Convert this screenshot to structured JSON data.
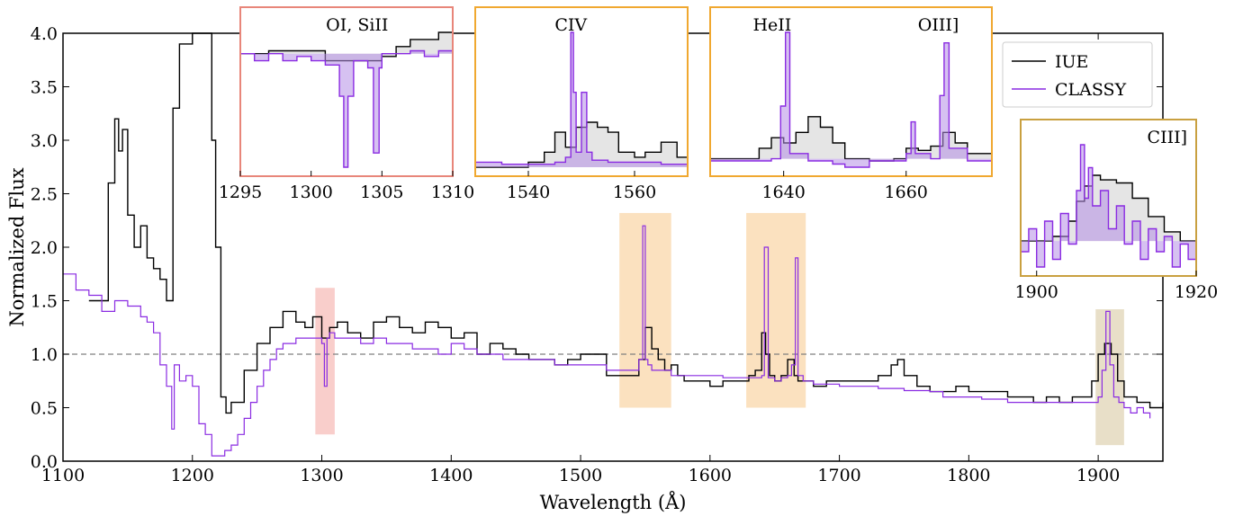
{
  "chart_data": {
    "type": "line",
    "xlabel": "Wavelength (Å)",
    "ylabel": "Normalized Flux",
    "xlim": [
      1100,
      1950
    ],
    "ylim": [
      0,
      4.0
    ],
    "x_ticks": [
      1100,
      1200,
      1300,
      1400,
      1500,
      1600,
      1700,
      1800,
      1900
    ],
    "y_ticks": [
      "0.0",
      "0.5",
      "1.0",
      "1.5",
      "2.0",
      "2.5",
      "3.0",
      "3.5",
      "4.0"
    ],
    "reference_line": {
      "y": 1.0,
      "style": "dashed",
      "color": "#7f7f7f"
    },
    "legend": {
      "placement": "top-right",
      "entries": [
        {
          "label": "IUE",
          "color": "#000000"
        },
        {
          "label": "CLASSY",
          "color": "#8a2be2"
        }
      ]
    },
    "colors": {
      "iue": "#000000",
      "classy": "#8a2be2",
      "masked": "#bfbfbf",
      "shade_red": "#f4a6a0",
      "shade_orange": "#f8c98a",
      "shade_tan": "#d6c49a"
    },
    "shaded_regions": [
      {
        "x": [
          1295,
          1310
        ],
        "y": [
          0.25,
          1.62
        ],
        "color": "#f4a6a0"
      },
      {
        "x": [
          1530,
          1570
        ],
        "y": [
          0.5,
          2.32
        ],
        "color": "#f8c98a"
      },
      {
        "x": [
          1628,
          1674
        ],
        "y": [
          0.5,
          2.32
        ],
        "color": "#f8c98a"
      },
      {
        "x": [
          1898,
          1920
        ],
        "y": [
          0.15,
          1.42
        ],
        "color": "#d6c49a"
      }
    ],
    "series": [
      {
        "name": "IUE",
        "x": [
          1120,
          1135,
          1140,
          1143,
          1146,
          1150,
          1155,
          1160,
          1165,
          1170,
          1175,
          1180,
          1185,
          1190,
          1200,
          1210,
          1215,
          1218,
          1222,
          1226,
          1230,
          1240,
          1250,
          1260,
          1270,
          1280,
          1287,
          1293,
          1300,
          1306,
          1312,
          1320,
          1330,
          1340,
          1350,
          1360,
          1370,
          1380,
          1390,
          1400,
          1410,
          1420,
          1430,
          1440,
          1450,
          1460,
          1470,
          1480,
          1490,
          1500,
          1510,
          1520,
          1530,
          1540,
          1545,
          1550,
          1555,
          1560,
          1565,
          1570,
          1575,
          1580,
          1590,
          1600,
          1610,
          1620,
          1630,
          1635,
          1640,
          1643,
          1646,
          1650,
          1655,
          1660,
          1665,
          1668,
          1672,
          1680,
          1690,
          1700,
          1710,
          1720,
          1730,
          1740,
          1745,
          1750,
          1760,
          1770,
          1780,
          1790,
          1800,
          1810,
          1820,
          1830,
          1840,
          1850,
          1860,
          1870,
          1880,
          1890,
          1895,
          1900,
          1905,
          1910,
          1915,
          1920,
          1930,
          1940,
          1950
        ],
        "y": [
          1.5,
          2.6,
          3.2,
          2.9,
          3.1,
          2.3,
          2.0,
          2.2,
          1.9,
          1.8,
          1.7,
          1.5,
          3.3,
          3.9,
          4.0,
          4.0,
          3.0,
          2.0,
          0.6,
          0.45,
          0.55,
          0.85,
          1.1,
          1.25,
          1.4,
          1.3,
          1.25,
          1.35,
          1.15,
          1.25,
          1.3,
          1.2,
          1.15,
          1.3,
          1.35,
          1.25,
          1.2,
          1.3,
          1.25,
          1.15,
          1.2,
          1.0,
          1.1,
          1.05,
          1.0,
          0.95,
          0.95,
          0.9,
          0.95,
          1.0,
          1.0,
          0.8,
          0.8,
          0.8,
          0.95,
          1.25,
          1.05,
          0.95,
          0.85,
          0.9,
          0.8,
          0.75,
          0.75,
          0.7,
          0.75,
          0.75,
          0.8,
          0.85,
          1.2,
          1.0,
          0.8,
          0.75,
          0.8,
          0.95,
          0.8,
          0.75,
          0.75,
          0.7,
          0.75,
          0.75,
          0.75,
          0.75,
          0.8,
          0.9,
          0.95,
          0.8,
          0.7,
          0.65,
          0.65,
          0.7,
          0.65,
          0.65,
          0.65,
          0.6,
          0.6,
          0.55,
          0.6,
          0.55,
          0.6,
          0.6,
          0.75,
          1.0,
          1.1,
          1.0,
          0.75,
          0.6,
          0.55,
          0.5,
          0.55
        ]
      },
      {
        "name": "CLASSY",
        "x": [
          1100,
          1110,
          1120,
          1130,
          1140,
          1150,
          1160,
          1165,
          1170,
          1175,
          1180,
          1184,
          1186,
          1190,
          1195,
          1200,
          1205,
          1210,
          1215,
          1220,
          1225,
          1230,
          1235,
          1240,
          1245,
          1250,
          1255,
          1260,
          1265,
          1270,
          1280,
          1290,
          1300,
          1302,
          1304,
          1306,
          1310,
          1320,
          1330,
          1340,
          1350,
          1360,
          1370,
          1380,
          1390,
          1400,
          1410,
          1420,
          1430,
          1440,
          1450,
          1460,
          1470,
          1480,
          1490,
          1500,
          1510,
          1520,
          1530,
          1540,
          1545,
          1548,
          1550,
          1552,
          1555,
          1560,
          1570,
          1580,
          1590,
          1600,
          1610,
          1620,
          1630,
          1635,
          1640,
          1642,
          1645,
          1650,
          1655,
          1660,
          1663,
          1666,
          1668,
          1672,
          1680,
          1690,
          1700,
          1710,
          1720,
          1730,
          1740,
          1750,
          1760,
          1770,
          1780,
          1790,
          1800,
          1810,
          1820,
          1830,
          1840,
          1850,
          1860,
          1870,
          1880,
          1890,
          1900,
          1903,
          1906,
          1909,
          1912,
          1916,
          1920,
          1925,
          1930,
          1935,
          1940
        ],
        "y": [
          1.75,
          1.6,
          1.55,
          1.4,
          1.5,
          1.45,
          1.35,
          1.3,
          1.2,
          0.9,
          0.7,
          0.3,
          0.9,
          0.75,
          0.8,
          0.7,
          0.35,
          0.25,
          0.05,
          0.05,
          0.1,
          0.15,
          0.25,
          0.4,
          0.55,
          0.7,
          0.85,
          0.95,
          1.05,
          1.1,
          1.15,
          1.15,
          1.1,
          0.7,
          1.15,
          1.2,
          1.15,
          1.15,
          1.1,
          1.15,
          1.1,
          1.1,
          1.05,
          1.05,
          1.0,
          1.1,
          1.05,
          1.0,
          1.0,
          0.95,
          0.95,
          0.95,
          0.95,
          0.9,
          0.9,
          0.9,
          0.9,
          0.85,
          0.85,
          0.85,
          0.95,
          2.2,
          0.95,
          0.9,
          0.85,
          0.85,
          0.8,
          0.8,
          0.8,
          0.8,
          0.78,
          0.78,
          0.78,
          0.78,
          0.8,
          2.0,
          0.78,
          0.75,
          0.78,
          0.8,
          0.9,
          1.9,
          0.8,
          0.75,
          0.72,
          0.72,
          0.7,
          0.7,
          0.7,
          0.68,
          0.68,
          0.66,
          0.66,
          0.65,
          0.6,
          0.6,
          0.6,
          0.58,
          0.58,
          0.55,
          0.55,
          0.55,
          0.55,
          0.55,
          0.55,
          0.55,
          0.6,
          0.85,
          1.4,
          0.9,
          0.6,
          0.55,
          0.5,
          0.45,
          0.5,
          0.45,
          0.4
        ]
      }
    ],
    "insets": [
      {
        "label": "OI, SiII",
        "border_color": "#e8867a",
        "xlim": [
          1295,
          1310
        ],
        "x_ticks": [
          1295,
          1300,
          1305,
          1310
        ],
        "series": [
          {
            "name": "IUE",
            "x": [
              1295,
              1297,
              1299,
              1301,
              1303,
              1305,
              1306,
              1307,
              1308,
              1309,
              1310
            ],
            "y": [
              1.2,
              1.22,
              1.22,
              1.15,
              1.15,
              1.18,
              1.25,
              1.3,
              1.3,
              1.35,
              1.3
            ]
          },
          {
            "name": "CLASSY",
            "x": [
              1295,
              1296,
              1297,
              1298,
              1299,
              1300,
              1301,
              1302,
              1302.3,
              1302.6,
              1303,
              1304,
              1304.4,
              1304.8,
              1305,
              1306,
              1307,
              1308,
              1309,
              1310
            ],
            "y": [
              1.2,
              1.15,
              1.2,
              1.15,
              1.18,
              1.15,
              1.12,
              0.9,
              0.4,
              0.9,
              1.15,
              1.1,
              0.5,
              1.1,
              1.2,
              1.2,
              1.22,
              1.18,
              1.22,
              1.2
            ]
          }
        ]
      },
      {
        "label": "CIV",
        "border_color": "#f0a830",
        "xlim": [
          1530,
          1570
        ],
        "x_ticks": [
          1540,
          1560
        ],
        "series": [
          {
            "name": "IUE",
            "x": [
              1530,
              1535,
              1540,
              1543,
              1545,
              1547,
              1549,
              1551,
              1553,
              1555,
              1557,
              1560,
              1562,
              1565,
              1568,
              1570
            ],
            "y": [
              0.85,
              0.85,
              0.9,
              1.0,
              1.2,
              1.05,
              1.25,
              1.3,
              1.25,
              1.2,
              1.0,
              0.95,
              1.0,
              1.1,
              0.95,
              0.85
            ]
          },
          {
            "name": "CLASSY",
            "x": [
              1530,
              1535,
              1540,
              1545,
              1547,
              1548,
              1548.5,
              1549,
              1550,
              1551,
              1552,
              1555,
              1560,
              1565,
              1570
            ],
            "y": [
              0.9,
              0.88,
              0.88,
              0.9,
              0.95,
              2.2,
              1.6,
              1.0,
              1.6,
              1.0,
              0.92,
              0.9,
              0.9,
              0.88,
              0.88
            ]
          }
        ]
      },
      {
        "label_1": "HeII",
        "label_2": "OIII]",
        "border_color": "#f0a830",
        "xlim": [
          1628,
          1674
        ],
        "x_ticks": [
          1640,
          1660
        ],
        "series": [
          {
            "name": "IUE",
            "x": [
              1628,
              1632,
              1636,
              1638,
              1640,
              1642,
              1644,
              1646,
              1648,
              1650,
              1654,
              1658,
              1660,
              1662,
              1664,
              1666,
              1668,
              1670,
              1674
            ],
            "y": [
              0.8,
              0.8,
              0.9,
              1.0,
              0.95,
              1.05,
              1.2,
              1.1,
              0.95,
              0.8,
              0.78,
              0.8,
              0.9,
              0.88,
              0.92,
              1.05,
              0.95,
              0.85,
              0.8
            ]
          },
          {
            "name": "CLASSY",
            "x": [
              1628,
              1632,
              1636,
              1638,
              1639.5,
              1640.3,
              1641,
              1644,
              1648,
              1650,
              1654,
              1658,
              1660,
              1660.8,
              1661.5,
              1664,
              1665.5,
              1666.2,
              1667,
              1670,
              1674
            ],
            "y": [
              0.78,
              0.78,
              0.78,
              0.8,
              1.3,
              2.0,
              0.85,
              0.78,
              0.75,
              0.72,
              0.78,
              0.78,
              0.85,
              1.15,
              0.85,
              0.8,
              1.4,
              1.9,
              0.9,
              0.78,
              0.76
            ]
          }
        ]
      },
      {
        "label": "CIII]",
        "border_color": "#c9a040",
        "xlim": [
          1898,
          1920
        ],
        "x_ticks": [
          1900,
          1920
        ],
        "series": [
          {
            "name": "IUE",
            "x": [
              1898,
              1900,
              1902,
              1904,
              1905,
              1906,
              1907,
              1908,
              1910,
              1912,
              1914,
              1916,
              1918,
              1920
            ],
            "y": [
              0.62,
              0.62,
              0.65,
              0.75,
              0.88,
              0.98,
              1.05,
              1.02,
              1.0,
              0.9,
              0.78,
              0.68,
              0.62,
              0.6
            ]
          },
          {
            "name": "CLASSY",
            "x": [
              1898,
              1899,
              1900,
              1901,
              1902,
              1903,
              1904,
              1905,
              1905.5,
              1906,
              1906.5,
              1907,
              1908,
              1909,
              1910,
              1911,
              1912,
              1913,
              1914,
              1915,
              1916,
              1917,
              1918,
              1919,
              1920
            ],
            "y": [
              0.55,
              0.7,
              0.45,
              0.75,
              0.5,
              0.8,
              0.6,
              0.95,
              1.25,
              0.9,
              1.1,
              0.85,
              0.95,
              0.7,
              0.85,
              0.6,
              0.75,
              0.5,
              0.7,
              0.55,
              0.65,
              0.45,
              0.6,
              0.5,
              0.55
            ]
          }
        ]
      }
    ]
  }
}
